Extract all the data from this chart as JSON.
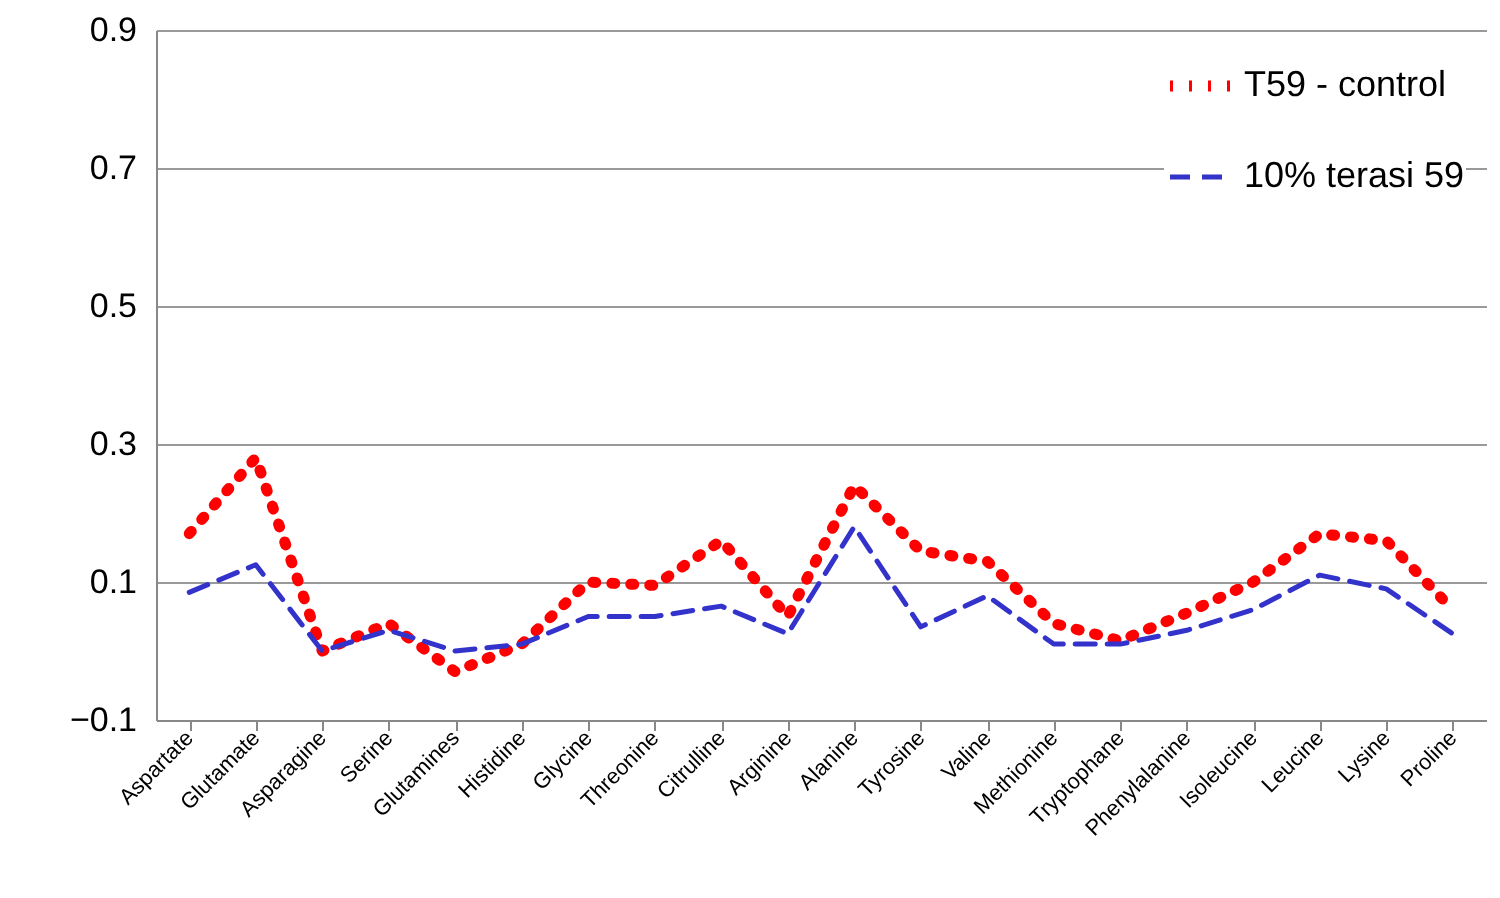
{
  "chart_data": {
    "type": "line",
    "categories": [
      "Aspartate",
      "Glutamate",
      "Asparagine",
      "Serine",
      "Glutamines",
      "Histidine",
      "Glycine",
      "Threonine",
      "Citrulline",
      "Arginine",
      "Alanine",
      "Tyrosine",
      "Valine",
      "Methionine",
      "Tryptophane",
      "Phenylalanine",
      "Isoleucine",
      "Leucine",
      "Lysine",
      "Proline"
    ],
    "series": [
      {
        "name": "T59 - control",
        "color": "#ff0000",
        "line_style": "dotted",
        "values": [
          0.17,
          0.28,
          0.0,
          0.04,
          -0.03,
          0.01,
          0.1,
          0.095,
          0.16,
          0.05,
          0.24,
          0.145,
          0.13,
          0.04,
          0.015,
          0.055,
          0.1,
          0.17,
          0.16,
          0.06
        ]
      },
      {
        "name": "10% terasi 59",
        "color": "#3333cc",
        "line_style": "dashed",
        "values": [
          0.085,
          0.125,
          0.0,
          0.03,
          0.0,
          0.01,
          0.05,
          0.05,
          0.065,
          0.025,
          0.18,
          0.035,
          0.08,
          0.01,
          0.01,
          0.03,
          0.06,
          0.11,
          0.09,
          0.025
        ]
      }
    ],
    "ylim": [
      -0.1,
      0.9
    ],
    "yticks": [
      -0.1,
      0.1,
      0.3,
      0.5,
      0.7,
      0.9
    ],
    "grid": "y",
    "legend": "top right"
  }
}
